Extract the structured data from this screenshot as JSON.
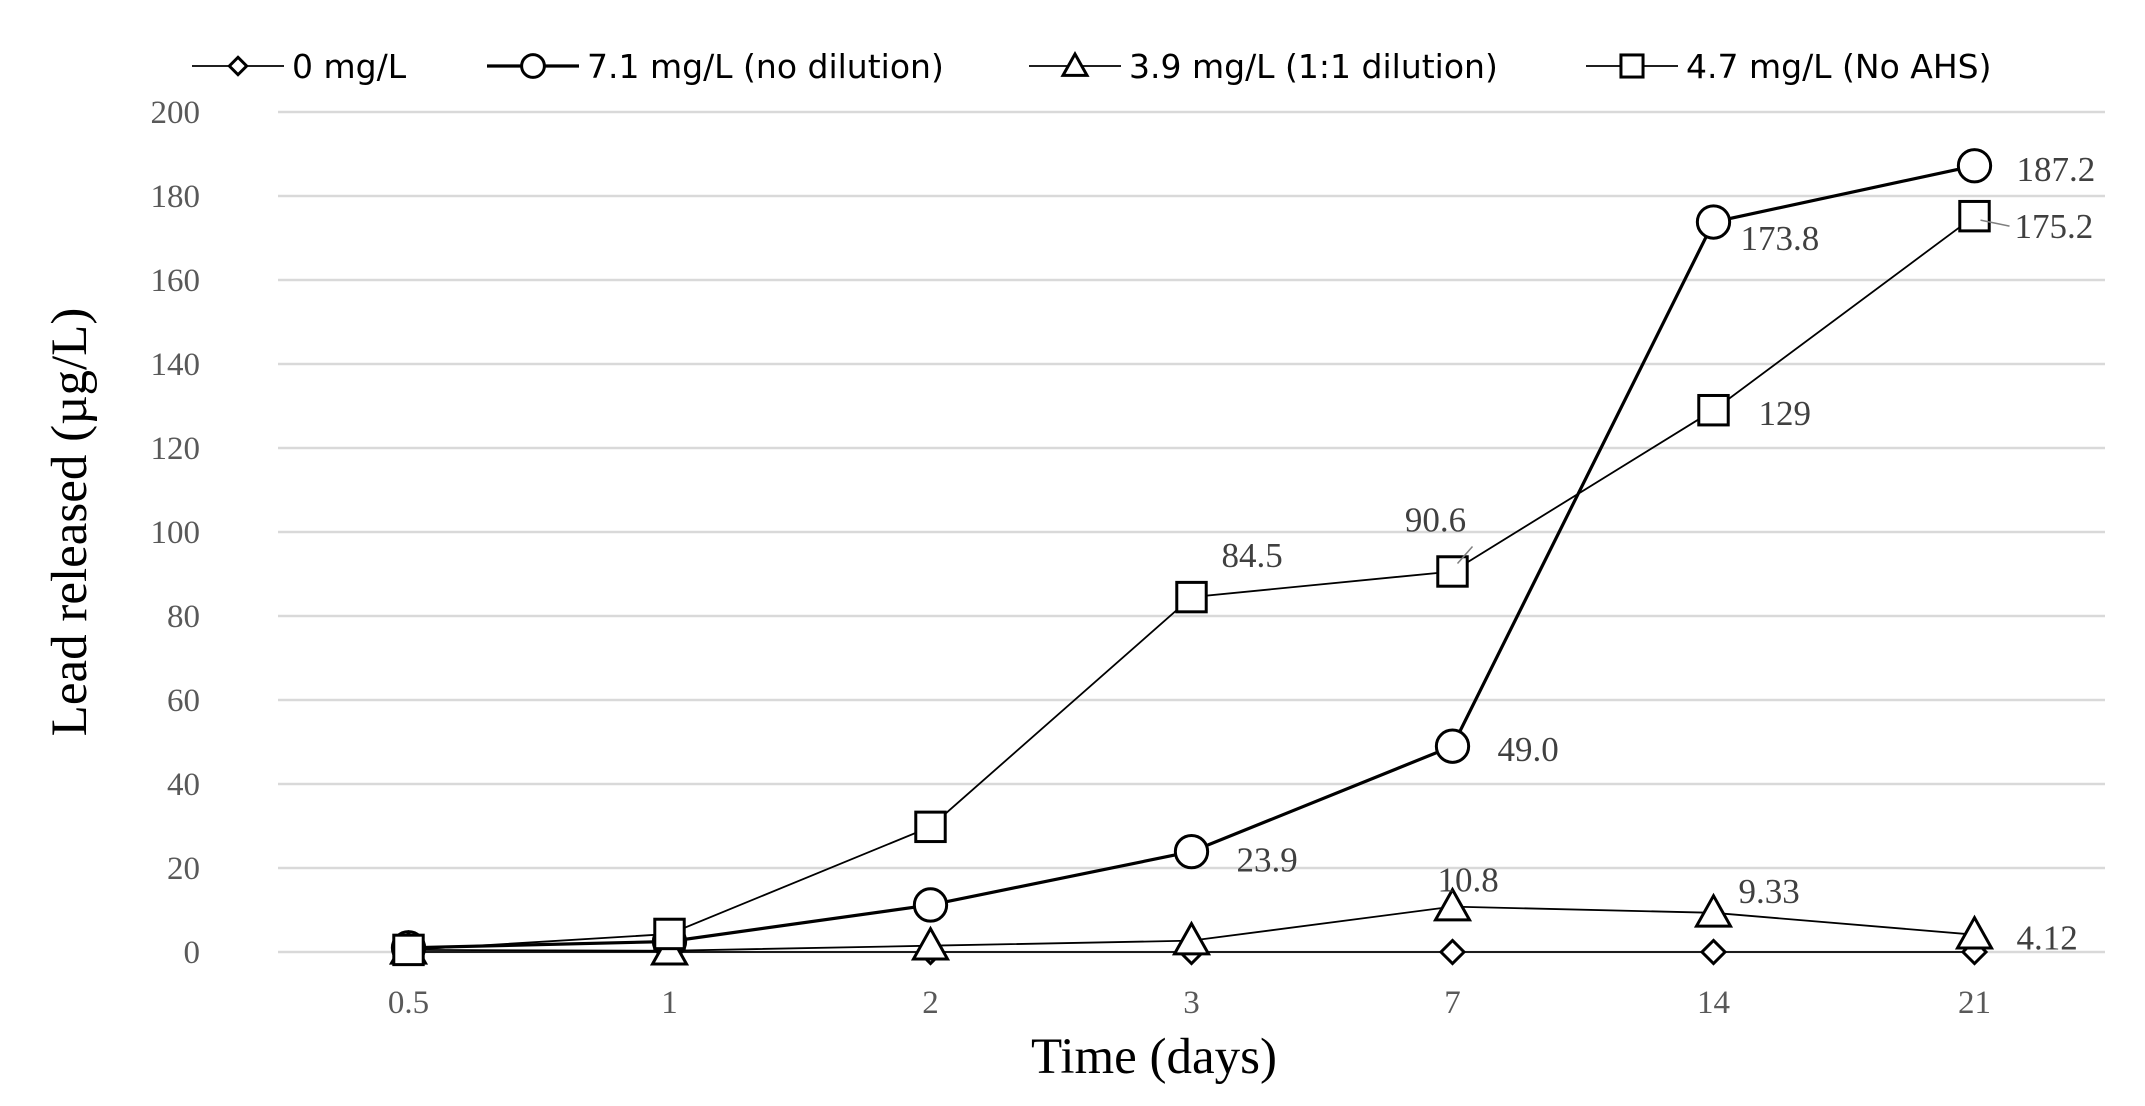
{
  "chart_data": {
    "type": "line",
    "xlabel": "Time (days)",
    "ylabel": "Lead released (µg/L)",
    "categories": [
      "0.5",
      "1",
      "2",
      "3",
      "7",
      "14",
      "21"
    ],
    "ylim": [
      0,
      200
    ],
    "yticks": [
      "0",
      "20",
      "40",
      "60",
      "80",
      "100",
      "120",
      "140",
      "160",
      "180",
      "200"
    ],
    "grid": true,
    "legend_position": "top",
    "series": [
      {
        "name": "0 mg/L",
        "marker": "diamond",
        "values": [
          0,
          0,
          0,
          0,
          0,
          0,
          0
        ],
        "labels": [
          "",
          "",
          "",
          "",
          "",
          "",
          ""
        ]
      },
      {
        "name": "7.1 mg/L (no dilution)",
        "marker": "circle",
        "values": [
          1,
          2.5,
          11.2,
          23.9,
          49.0,
          173.8,
          187.2
        ],
        "labels": [
          "",
          "",
          "",
          "23.9",
          "49.0",
          "173.8",
          "187.2"
        ]
      },
      {
        "name": "3.9 mg/L (1:1 dilution)",
        "marker": "triangle",
        "values": [
          0.5,
          0.3,
          1.5,
          2.7,
          10.8,
          9.33,
          4.12
        ],
        "labels": [
          "",
          "",
          "",
          "",
          "10.8",
          "9.33",
          "4.12"
        ]
      },
      {
        "name": "4.7 mg/L (No AHS)",
        "marker": "square",
        "values": [
          0.5,
          4.3,
          29.8,
          84.5,
          90.6,
          129,
          175.2
        ],
        "labels": [
          "",
          "",
          "",
          "84.5",
          "90.6",
          "129",
          "175.2"
        ]
      }
    ]
  }
}
